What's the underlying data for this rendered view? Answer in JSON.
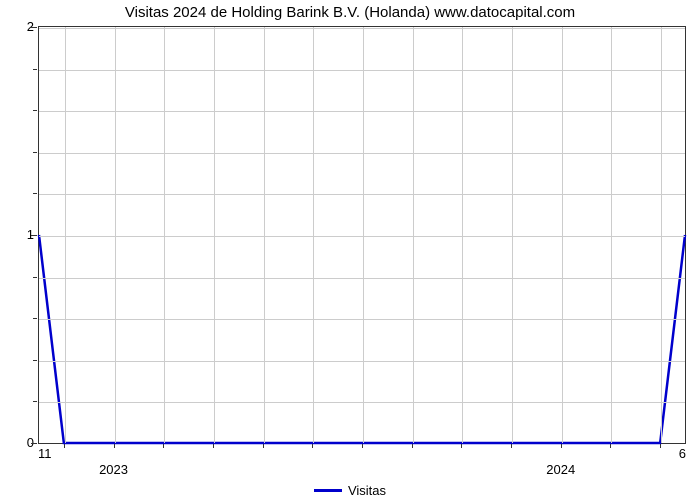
{
  "chart": {
    "type": "line",
    "title": "Visitas 2024 de Holding Barink B.V. (Holanda) www.datocapital.com",
    "title_fontsize": 15,
    "background_color": "#ffffff",
    "grid_color": "#cccccc",
    "axis_color": "#333333",
    "line_color": "#0000cc",
    "line_width": 2.5,
    "y": {
      "lim": [
        0,
        2
      ],
      "major_ticks": [
        0,
        1,
        2
      ],
      "minor_tick_count_between": 4
    },
    "x": {
      "n_major": 13,
      "major_labels": {
        "1": "2023",
        "10": "2024"
      },
      "left_corner_label": "11",
      "right_corner_label": "6"
    },
    "series": {
      "label": "Visitas",
      "x": [
        0,
        0.5,
        12.5,
        13
      ],
      "y": [
        1,
        0,
        0,
        1
      ]
    },
    "legend": {
      "label": "Visitas",
      "position": "bottom-center"
    }
  }
}
